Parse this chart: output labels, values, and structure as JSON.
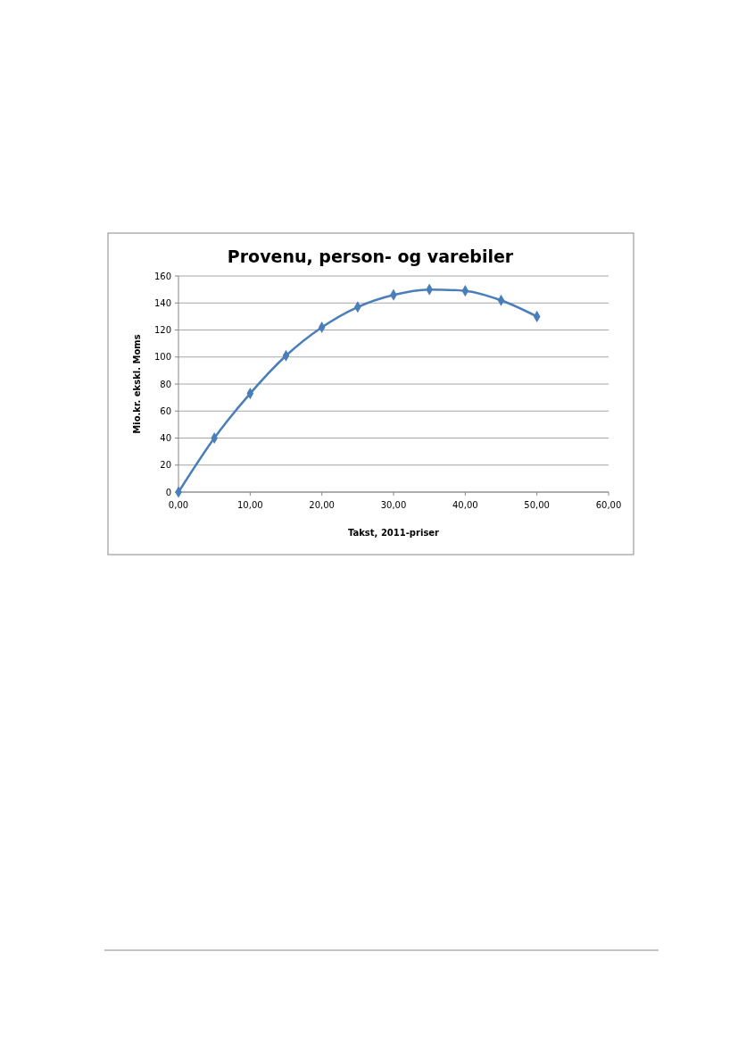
{
  "chart_data": {
    "type": "line",
    "title": "Provenu, person- og varebiler",
    "xlabel": "Takst, 2011-priser",
    "ylabel": "Mio.kr. ekskl. Moms",
    "x": [
      0,
      5,
      10,
      15,
      20,
      25,
      30,
      35,
      40,
      45,
      50
    ],
    "series": [
      {
        "color": "#4a7ebb",
        "values": [
          0,
          40,
          73,
          101,
          122,
          137,
          146,
          150,
          149,
          142,
          130
        ]
      }
    ],
    "xlim": [
      0,
      60
    ],
    "xticks": [
      {
        "value": 0,
        "label": "0,00"
      },
      {
        "value": 10,
        "label": "10,00"
      },
      {
        "value": 20,
        "label": "20,00"
      },
      {
        "value": 30,
        "label": "30,00"
      },
      {
        "value": 40,
        "label": "40,00"
      },
      {
        "value": 50,
        "label": "50,00"
      },
      {
        "value": 60,
        "label": "60,00"
      }
    ],
    "ylim": [
      0,
      160
    ],
    "yticks": [
      0,
      20,
      40,
      60,
      80,
      100,
      120,
      140,
      160
    ],
    "grid": "y",
    "marker": "diamond",
    "line_style": "solid"
  }
}
